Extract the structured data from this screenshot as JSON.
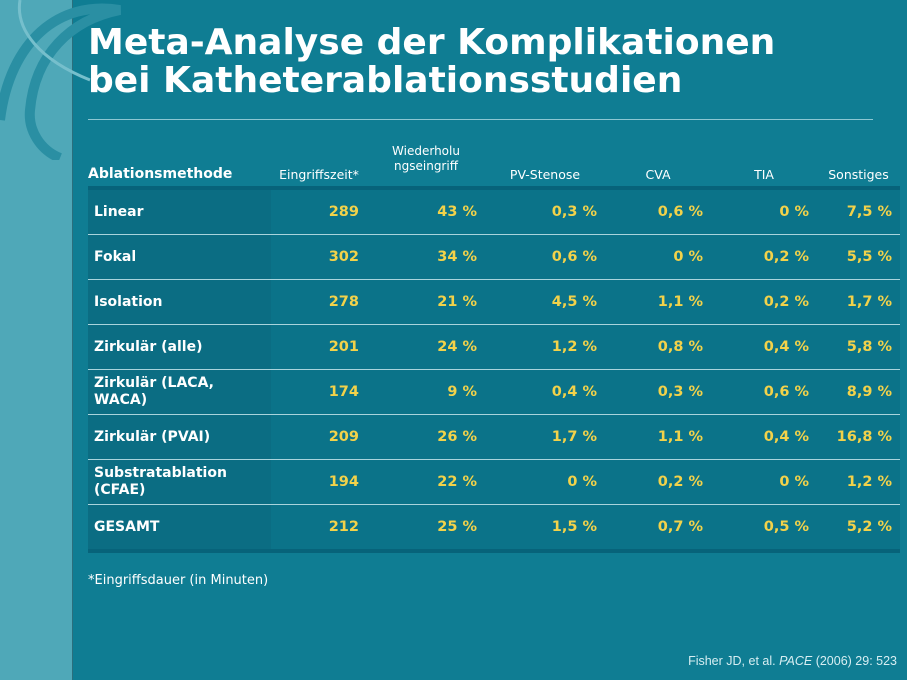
{
  "title": {
    "line1": "Meta-Analyse der Komplikationen",
    "line2": "bei Katheterablationsstudien"
  },
  "table": {
    "headers": [
      "Ablationsmethode",
      "Eingriffszeit*",
      "Wiederholu ngseingriff",
      "PV-Stenose",
      "CVA",
      "TIA",
      "Sonstiges"
    ],
    "rows": [
      {
        "method": "Linear",
        "values": [
          "289",
          "43 %",
          "0,3 %",
          "0,6 %",
          "0 %",
          "7,5 %"
        ]
      },
      {
        "method": "Fokal",
        "values": [
          "302",
          "34 %",
          "0,6 %",
          "0 %",
          "0,2 %",
          "5,5 %"
        ]
      },
      {
        "method": "Isolation",
        "values": [
          "278",
          "21 %",
          "4,5 %",
          "1,1 %",
          "0,2 %",
          "1,7 %"
        ]
      },
      {
        "method": "Zirkulär (alle)",
        "values": [
          "201",
          "24 %",
          "1,2 %",
          "0,8 %",
          "0,4 %",
          "5,8 %"
        ]
      },
      {
        "method": "Zirkulär (LACA, WACA)",
        "values": [
          "174",
          "9 %",
          "0,4 %",
          "0,3 %",
          "0,6 %",
          "8,9 %"
        ]
      },
      {
        "method": "Zirkulär (PVAI)",
        "values": [
          "209",
          "26 %",
          "1,7 %",
          "1,1 %",
          "0,4 %",
          "16,8 %"
        ]
      },
      {
        "method": "Substratablation (CFAE)",
        "values": [
          "194",
          "22 %",
          "0 %",
          "0,2 %",
          "0 %",
          "1,2 %"
        ]
      },
      {
        "method": "GESAMT",
        "values": [
          "212",
          "25 %",
          "1,5 %",
          "0,7 %",
          "0,5 %",
          "5,2 %"
        ]
      }
    ]
  },
  "footnote": "*Eingriffsdauer (in Minuten)",
  "citation": {
    "authors": "Fisher JD, et al.",
    "journal": "PACE",
    "details": "(2006) 29: 523"
  },
  "colors": {
    "background": "#0f7d93",
    "side_band": "#4fa8b8",
    "value_text": "#f2d24a",
    "label_text": "#ffffff"
  }
}
